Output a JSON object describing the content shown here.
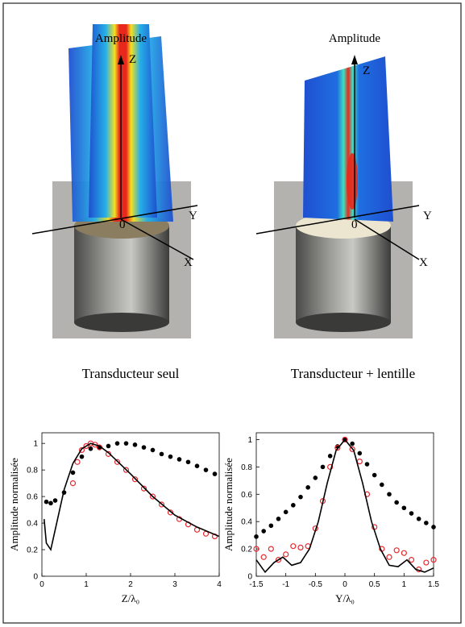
{
  "panels": [
    {
      "title": "Amplitude",
      "axis_z": "Z",
      "axis_y": "Y",
      "axis_x": "X",
      "origin": "0",
      "caption": "Transducteur seul"
    },
    {
      "title": "Amplitude",
      "axis_z": "Z",
      "axis_y": "Y",
      "axis_x": "X",
      "origin": "0",
      "caption": "Transducteur + lentille"
    }
  ],
  "chart_data": [
    {
      "type": "scatter",
      "xlabel": "Z/λ₀",
      "ylabel": "Amplitude normalisée",
      "xlim": [
        0,
        4
      ],
      "xticks": [
        0,
        1,
        2,
        3,
        4
      ],
      "ylim": [
        0,
        1.08
      ],
      "yticks": [
        0,
        0.2,
        0.4,
        0.6,
        0.8,
        1
      ],
      "series": [
        {
          "mode": "markers",
          "marker": "filled",
          "color": "#000000",
          "x": [
            0.1,
            0.2,
            0.3,
            0.5,
            0.7,
            0.9,
            1.1,
            1.3,
            1.5,
            1.7,
            1.9,
            2.1,
            2.3,
            2.5,
            2.7,
            2.9,
            3.1,
            3.3,
            3.5,
            3.7,
            3.9
          ],
          "values": [
            0.56,
            0.55,
            0.57,
            0.63,
            0.78,
            0.9,
            0.96,
            0.97,
            0.98,
            1.0,
            1.0,
            0.99,
            0.97,
            0.95,
            0.92,
            0.9,
            0.88,
            0.86,
            0.83,
            0.8,
            0.77
          ]
        },
        {
          "mode": "markers",
          "marker": "open",
          "color": "#e8282f",
          "x": [
            0.7,
            0.8,
            0.9,
            1.0,
            1.1,
            1.2,
            1.3,
            1.5,
            1.7,
            1.9,
            2.1,
            2.3,
            2.5,
            2.7,
            2.9,
            3.1,
            3.3,
            3.5,
            3.7,
            3.9
          ],
          "values": [
            0.7,
            0.86,
            0.95,
            0.98,
            1.0,
            0.99,
            0.97,
            0.92,
            0.86,
            0.8,
            0.73,
            0.66,
            0.6,
            0.54,
            0.48,
            0.43,
            0.39,
            0.35,
            0.32,
            0.3
          ]
        },
        {
          "mode": "lines",
          "color": "#000000",
          "x": [
            0.05,
            0.1,
            0.2,
            0.3,
            0.5,
            0.7,
            0.9,
            1.1,
            1.3,
            1.5,
            2,
            2.5,
            3,
            3.5,
            4
          ],
          "values": [
            0.43,
            0.25,
            0.2,
            0.35,
            0.65,
            0.85,
            0.96,
            1.0,
            0.98,
            0.93,
            0.77,
            0.6,
            0.46,
            0.37,
            0.3
          ]
        }
      ]
    },
    {
      "type": "scatter",
      "xlabel": "Y/λ₀",
      "ylabel": "Amplitude normalisée",
      "xlim": [
        -1.5,
        1.5
      ],
      "xticks": [
        -1.5,
        -1,
        -0.5,
        0,
        0.5,
        1,
        1.5
      ],
      "ylim": [
        0,
        1.05
      ],
      "yticks": [
        0,
        0.2,
        0.4,
        0.6,
        0.8,
        1
      ],
      "series": [
        {
          "mode": "markers",
          "marker": "filled",
          "color": "#000000",
          "x": [
            -1.5,
            -1.375,
            -1.25,
            -1.125,
            -1,
            -0.875,
            -0.75,
            -0.625,
            -0.5,
            -0.375,
            -0.25,
            -0.125,
            0,
            0.125,
            0.25,
            0.375,
            0.5,
            0.625,
            0.75,
            0.875,
            1,
            1.125,
            1.25,
            1.375,
            1.5
          ],
          "values": [
            0.29,
            0.33,
            0.37,
            0.42,
            0.47,
            0.52,
            0.58,
            0.65,
            0.72,
            0.8,
            0.88,
            0.95,
            1.0,
            0.97,
            0.9,
            0.82,
            0.74,
            0.67,
            0.6,
            0.54,
            0.5,
            0.46,
            0.42,
            0.39,
            0.36
          ]
        },
        {
          "mode": "markers",
          "marker": "open",
          "color": "#e8282f",
          "x": [
            -1.5,
            -1.375,
            -1.25,
            -1.125,
            -1,
            -0.875,
            -0.75,
            -0.625,
            -0.5,
            -0.375,
            -0.25,
            -0.125,
            0,
            0.125,
            0.25,
            0.375,
            0.5,
            0.625,
            0.75,
            0.875,
            1,
            1.125,
            1.25,
            1.375,
            1.5
          ],
          "values": [
            0.2,
            0.14,
            0.2,
            0.12,
            0.16,
            0.22,
            0.21,
            0.22,
            0.35,
            0.55,
            0.8,
            0.94,
            1.0,
            0.93,
            0.84,
            0.6,
            0.36,
            0.2,
            0.14,
            0.19,
            0.17,
            0.12,
            0.05,
            0.1,
            0.12
          ]
        },
        {
          "mode": "lines",
          "color": "#000000",
          "x": [
            -1.5,
            -1.35,
            -1.2,
            -1.05,
            -0.9,
            -0.75,
            -0.6,
            -0.45,
            -0.3,
            -0.15,
            0,
            0.15,
            0.3,
            0.45,
            0.6,
            0.75,
            0.9,
            1.05,
            1.2,
            1.35,
            1.5
          ],
          "values": [
            0.12,
            0.03,
            0.1,
            0.14,
            0.08,
            0.1,
            0.2,
            0.4,
            0.68,
            0.92,
            1.0,
            0.92,
            0.68,
            0.4,
            0.2,
            0.08,
            0.07,
            0.12,
            0.05,
            0.03,
            0.06
          ]
        }
      ]
    }
  ]
}
